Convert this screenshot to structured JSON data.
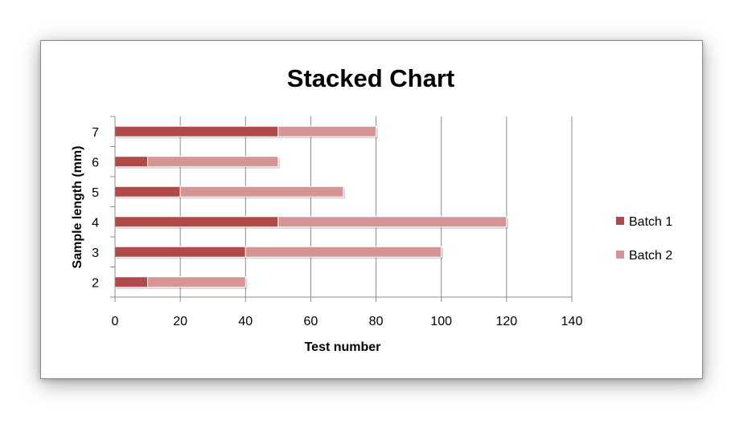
{
  "chart_data": {
    "type": "bar",
    "orientation": "horizontal",
    "stacked": true,
    "title": "Stacked Chart",
    "xlabel": "Test number",
    "ylabel": "Sample length (mm)",
    "categories": [
      "2",
      "3",
      "4",
      "5",
      "6",
      "7"
    ],
    "series": [
      {
        "name": "Batch 1",
        "values": [
          10,
          40,
          50,
          20,
          10,
          50
        ],
        "color": "#b04a48"
      },
      {
        "name": "Batch 2",
        "values": [
          30,
          60,
          70,
          50,
          40,
          30
        ],
        "color": "#d49594"
      }
    ],
    "xlim": [
      0,
      140
    ],
    "xticks": [
      0,
      20,
      40,
      60,
      80,
      100,
      120,
      140
    ],
    "grid": "vertical",
    "legend": "right"
  }
}
